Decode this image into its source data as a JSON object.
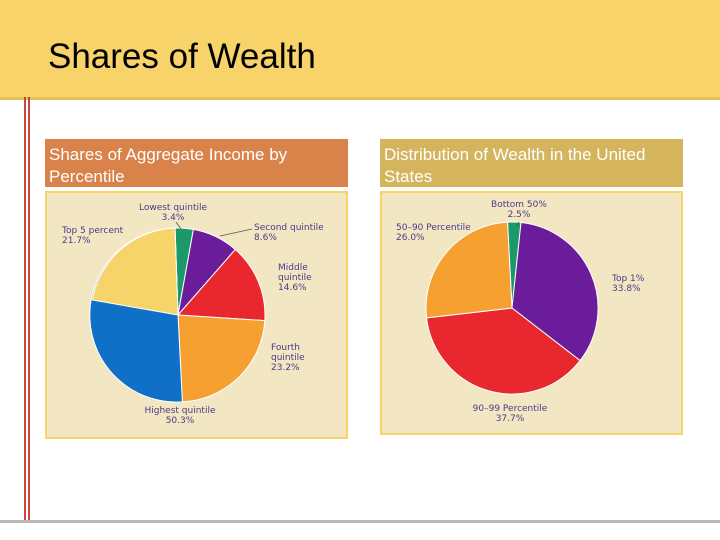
{
  "slide": {
    "title": "Shares of Wealth"
  },
  "panels": {
    "left": {
      "title": "Shares of Aggregate Income by Percentile"
    },
    "right": {
      "title": "Distribution of Wealth in the United States"
    }
  },
  "colors": {
    "header": "#f7d36a",
    "left_title_bg": "#d98249",
    "right_title_bg": "#d4b45d",
    "accent_line": "#c8463a"
  },
  "chart_data": [
    {
      "type": "pie",
      "title": "Shares of Aggregate Income by Percentile",
      "slices": [
        {
          "label": "Lowest quintile",
          "value": 3.4,
          "value_text": "3.4%",
          "color": "#1a9a6a"
        },
        {
          "label": "Second quintile",
          "value": 8.6,
          "value_text": "8.6%",
          "color": "#6a1c9a"
        },
        {
          "label": "Middle quintile",
          "value": 14.6,
          "value_text": "14.6%",
          "color": "#e8282e"
        },
        {
          "label": "Fourth quintile",
          "value": 23.2,
          "value_text": "23.2%",
          "color": "#f5a030"
        },
        {
          "label": "Highest quintile",
          "value": 50.3,
          "value_text": "50.3%",
          "color": "#1070c8"
        },
        {
          "label": "Top 5 percent",
          "value": 21.7,
          "value_text": "21.7%",
          "color": "#f7d46a",
          "overlay": true
        }
      ]
    },
    {
      "type": "pie",
      "title": "Distribution of Wealth in the United States",
      "slices": [
        {
          "label": "Bottom 50%",
          "value": 2.5,
          "value_text": "2.5%",
          "color": "#1a9a6a"
        },
        {
          "label": "Top 1%",
          "value": 33.8,
          "value_text": "33.8%",
          "color": "#6a1c9a"
        },
        {
          "label": "90–99 Percentile",
          "value": 37.7,
          "value_text": "37.7%",
          "color": "#e8282e"
        },
        {
          "label": "50–90 Percentile",
          "value": 26.0,
          "value_text": "26.0%",
          "color": "#f5a030"
        }
      ]
    }
  ]
}
